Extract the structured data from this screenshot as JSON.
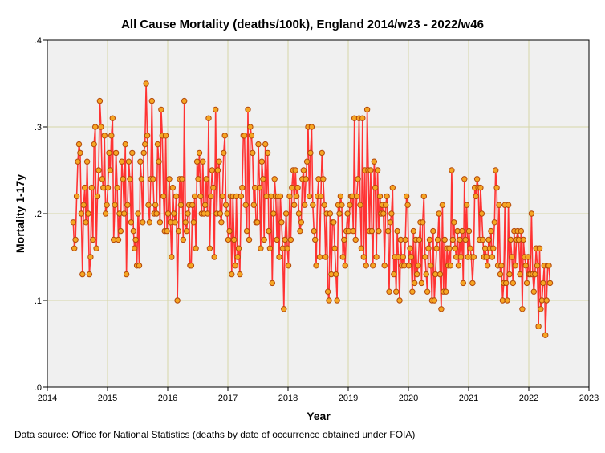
{
  "chart_data": {
    "type": "line",
    "title": "All Cause Mortality (deaths/100k), England 2014/w23 - 2022/w46",
    "xlabel": "Year",
    "ylabel": "Mortality 1-17y",
    "xlim": [
      2014,
      2023
    ],
    "ylim": [
      0,
      0.4
    ],
    "xticks": [
      "2014",
      "2015",
      "2016",
      "2017",
      "2018",
      "2019",
      "2020",
      "2021",
      "2022",
      "2023"
    ],
    "yticks": [
      ".0",
      ".1",
      ".2",
      ".3",
      ".4"
    ],
    "grid": true,
    "series": [
      {
        "name": "Mortality 1-17y",
        "x_start": 2014.43,
        "x_step": 0.019231,
        "values": [
          0.19,
          0.16,
          0.17,
          0.22,
          0.26,
          0.28,
          0.27,
          0.2,
          0.13,
          0.21,
          0.23,
          0.19,
          0.26,
          0.2,
          0.13,
          0.15,
          0.23,
          0.17,
          0.28,
          0.3,
          0.16,
          0.22,
          0.25,
          0.33,
          0.3,
          0.24,
          0.23,
          0.29,
          0.2,
          0.21,
          0.23,
          0.27,
          0.25,
          0.29,
          0.31,
          0.17,
          0.21,
          0.27,
          0.23,
          0.17,
          0.2,
          0.18,
          0.26,
          0.24,
          0.2,
          0.28,
          0.13,
          0.21,
          0.26,
          0.24,
          0.19,
          0.27,
          0.18,
          0.16,
          0.17,
          0.14,
          0.2,
          0.14,
          0.26,
          0.24,
          0.19,
          0.27,
          0.28,
          0.35,
          0.29,
          0.21,
          0.19,
          0.24,
          0.33,
          0.24,
          0.2,
          0.21,
          0.2,
          0.28,
          0.26,
          0.19,
          0.32,
          0.29,
          0.22,
          0.18,
          0.29,
          0.18,
          0.2,
          0.24,
          0.19,
          0.15,
          0.23,
          0.2,
          0.19,
          0.22,
          0.1,
          0.18,
          0.24,
          0.21,
          0.24,
          0.17,
          0.33,
          0.19,
          0.18,
          0.2,
          0.21,
          0.14,
          0.14,
          0.21,
          0.19,
          0.22,
          0.16,
          0.26,
          0.24,
          0.27,
          0.22,
          0.2,
          0.26,
          0.2,
          0.21,
          0.24,
          0.2,
          0.31,
          0.16,
          0.22,
          0.25,
          0.23,
          0.15,
          0.32,
          0.2,
          0.25,
          0.26,
          0.2,
          0.19,
          0.22,
          0.27,
          0.29,
          0.21,
          0.2,
          0.17,
          0.18,
          0.22,
          0.13,
          0.22,
          0.17,
          0.14,
          0.22,
          0.15,
          0.16,
          0.13,
          0.22,
          0.23,
          0.29,
          0.29,
          0.21,
          0.18,
          0.32,
          0.17,
          0.3,
          0.29,
          0.27,
          0.21,
          0.23,
          0.19,
          0.19,
          0.28,
          0.23,
          0.16,
          0.26,
          0.24,
          0.17,
          0.28,
          0.22,
          0.27,
          0.18,
          0.16,
          0.22,
          0.12,
          0.2,
          0.24,
          0.22,
          0.17,
          0.22,
          0.15,
          0.22,
          0.19,
          0.16,
          0.09,
          0.17,
          0.2,
          0.16,
          0.14,
          0.22,
          0.17,
          0.23,
          0.25,
          0.21,
          0.25,
          0.22,
          0.23,
          0.2,
          0.18,
          0.19,
          0.24,
          0.25,
          0.21,
          0.24,
          0.26,
          0.3,
          0.22,
          0.27,
          0.3,
          0.21,
          0.18,
          0.17,
          0.14,
          0.22,
          0.24,
          0.15,
          0.22,
          0.27,
          0.24,
          0.21,
          0.15,
          0.2,
          0.11,
          0.1,
          0.2,
          0.13,
          0.19,
          0.19,
          0.16,
          0.13,
          0.1,
          0.21,
          0.2,
          0.22,
          0.21,
          0.15,
          0.17,
          0.14,
          0.18,
          0.2,
          0.18,
          0.21,
          0.22,
          0.22,
          0.18,
          0.31,
          0.17,
          0.22,
          0.24,
          0.31,
          0.21,
          0.16,
          0.31,
          0.15,
          0.25,
          0.14,
          0.32,
          0.25,
          0.18,
          0.25,
          0.18,
          0.14,
          0.26,
          0.23,
          0.15,
          0.25,
          0.18,
          0.22,
          0.2,
          0.21,
          0.2,
          0.14,
          0.21,
          0.22,
          0.18,
          0.11,
          0.19,
          0.2,
          0.23,
          0.13,
          0.15,
          0.11,
          0.18,
          0.15,
          0.1,
          0.17,
          0.14,
          0.15,
          0.14,
          0.17,
          0.22,
          0.21,
          0.14,
          0.16,
          0.15,
          0.11,
          0.18,
          0.12,
          0.17,
          0.13,
          0.14,
          0.17,
          0.19,
          0.12,
          0.19,
          0.22,
          0.15,
          0.13,
          0.11,
          0.16,
          0.17,
          0.14,
          0.1,
          0.18,
          0.1,
          0.13,
          0.16,
          0.17,
          0.2,
          0.13,
          0.09,
          0.21,
          0.11,
          0.17,
          0.11,
          0.16,
          0.14,
          0.16,
          0.14,
          0.25,
          0.17,
          0.19,
          0.16,
          0.15,
          0.18,
          0.14,
          0.17,
          0.15,
          0.18,
          0.12,
          0.24,
          0.17,
          0.21,
          0.15,
          0.18,
          0.16,
          0.15,
          0.12,
          0.15,
          0.23,
          0.22,
          0.24,
          0.23,
          0.17,
          0.23,
          0.2,
          0.17,
          0.15,
          0.16,
          0.15,
          0.14,
          0.17,
          0.16,
          0.18,
          0.15,
          0.16,
          0.19,
          0.25,
          0.23,
          0.14,
          0.21,
          0.13,
          0.14,
          0.1,
          0.12,
          0.21,
          0.12,
          0.1,
          0.21,
          0.13,
          0.17,
          0.15,
          0.12,
          0.18,
          0.14,
          0.17,
          0.18,
          0.17,
          0.13,
          0.18,
          0.09,
          0.17,
          0.15,
          0.14,
          0.12,
          0.15,
          0.13,
          0.13,
          0.2,
          0.13,
          0.11,
          0.13,
          0.16,
          0.14,
          0.07,
          0.16,
          0.09,
          0.1,
          0.12,
          0.14,
          0.06,
          0.1,
          0.14,
          0.14,
          0.12
        ]
      }
    ],
    "line_color": "#ff3333",
    "marker_fill": "#f5a623",
    "marker_edge": "#b3480a",
    "plot_background": "#f0f0f0",
    "grid_color": "#d6d6a8"
  },
  "footer": {
    "source_note": "Data source: Office for National Statistics (deaths by date of occurrence obtained under FOIA)"
  }
}
